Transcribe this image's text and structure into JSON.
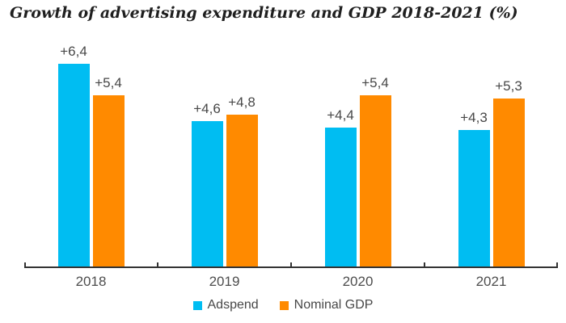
{
  "title": "Growth of advertising expenditure and GDP 2018-2021 (%)",
  "chart_data": {
    "type": "bar",
    "title": "Growth of advertising expenditure and GDP 2018-2021 (%)",
    "categories": [
      "2018",
      "2019",
      "2020",
      "2021"
    ],
    "series": [
      {
        "name": "Adspend",
        "color": "#00BDF2",
        "values": [
          6.4,
          4.6,
          4.4,
          4.3
        ],
        "data_labels": [
          "+6,4",
          "+4,6",
          "+4,4",
          "+4,3"
        ]
      },
      {
        "name": "Nominal GDP",
        "color": "#FF8A00",
        "values": [
          5.4,
          4.8,
          5.4,
          5.3
        ],
        "data_labels": [
          "+5,4",
          "+4,8",
          "+5,4",
          "+5,3"
        ]
      }
    ],
    "xlabel": "",
    "ylabel": "",
    "ylim": [
      0,
      7.3
    ],
    "grid": false,
    "y_axis_visible": false,
    "legend_position": "bottom",
    "decimal_separator": ","
  }
}
